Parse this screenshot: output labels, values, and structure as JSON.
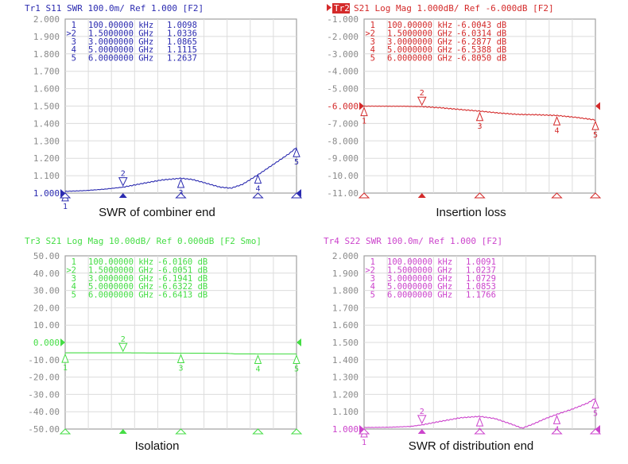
{
  "chart_data": [
    {
      "type": "line",
      "id": "tr1",
      "header": "Tr1 S11 SWR 100.0m/ Ref 1.000 [F2]",
      "trace_label": "Tr1",
      "trace_active": false,
      "caption": "SWR of combiner end",
      "color": "#2b2bb0",
      "ylim": [
        1.0,
        2.0
      ],
      "yticks": [
        "2.000",
        "1.900",
        "1.800",
        "1.700",
        "1.600",
        "1.500",
        "1.400",
        "1.300",
        "1.200",
        "1.100",
        "1.000"
      ],
      "ref_value": 1.0,
      "ref_tick_index": 10,
      "xlim_ghz": [
        0.0001,
        6
      ],
      "x_divisions": 10,
      "markers": [
        {
          "num": "1",
          "active": false,
          "freq": "100.00000 kHz",
          "value": "1.0098",
          "x_ghz": 0.0001,
          "y": 1.0098
        },
        {
          "num": "2",
          "active": true,
          "freq": "1.5000000 GHz",
          "value": "1.0336",
          "x_ghz": 1.5,
          "y": 1.0336
        },
        {
          "num": "3",
          "active": false,
          "freq": "3.0000000 GHz",
          "value": "1.0865",
          "x_ghz": 3.0,
          "y": 1.0865
        },
        {
          "num": "4",
          "active": false,
          "freq": "5.0000000 GHz",
          "value": "1.1115",
          "x_ghz": 5.0,
          "y": 1.1115
        },
        {
          "num": "5",
          "active": false,
          "freq": "6.0000000 GHz",
          "value": "1.2637",
          "x_ghz": 6.0,
          "y": 1.2637
        }
      ],
      "trace": [
        [
          0,
          1.01
        ],
        [
          0.5,
          1.014
        ],
        [
          1.0,
          1.022
        ],
        [
          1.5,
          1.034
        ],
        [
          2.0,
          1.055
        ],
        [
          2.5,
          1.075
        ],
        [
          3.0,
          1.085
        ],
        [
          3.3,
          1.078
        ],
        [
          3.6,
          1.06
        ],
        [
          4.0,
          1.035
        ],
        [
          4.3,
          1.028
        ],
        [
          4.6,
          1.05
        ],
        [
          5.0,
          1.105
        ],
        [
          5.3,
          1.15
        ],
        [
          5.6,
          1.195
        ],
        [
          5.8,
          1.225
        ],
        [
          6.0,
          1.262
        ]
      ]
    },
    {
      "type": "line",
      "id": "tr2",
      "header": "S21 Log Mag 1.000dB/ Ref -6.000dB [F2]",
      "trace_label": "Tr2",
      "trace_active": true,
      "caption": "Insertion loss",
      "color": "#d42a2a",
      "ylim": [
        -11.0,
        -1.0
      ],
      "yticks": [
        "-1.000",
        "-2.000",
        "-3.000",
        "-4.000",
        "-5.000",
        "-6.000",
        "-7.000",
        "-8.000",
        "-9.000",
        "-10.00",
        "-11.00"
      ],
      "ref_value": -6.0,
      "ref_tick_index": 5,
      "xlim_ghz": [
        0.0001,
        6
      ],
      "x_divisions": 10,
      "markers": [
        {
          "num": "1",
          "active": false,
          "freq": "100.00000 kHz",
          "value": "-6.0043 dB",
          "x_ghz": 0.0001,
          "y": -6.0043
        },
        {
          "num": "2",
          "active": true,
          "freq": "1.5000000 GHz",
          "value": "-6.0314 dB",
          "x_ghz": 1.5,
          "y": -6.0314
        },
        {
          "num": "3",
          "active": false,
          "freq": "3.0000000 GHz",
          "value": "-6.2877 dB",
          "x_ghz": 3.0,
          "y": -6.2877
        },
        {
          "num": "4",
          "active": false,
          "freq": "5.0000000 GHz",
          "value": "-6.5388 dB",
          "x_ghz": 5.0,
          "y": -6.5388
        },
        {
          "num": "5",
          "active": false,
          "freq": "6.0000000 GHz",
          "value": "-6.8050 dB",
          "x_ghz": 6.0,
          "y": -6.805
        }
      ],
      "trace": [
        [
          0,
          -6.004
        ],
        [
          1.0,
          -6.01
        ],
        [
          1.5,
          -6.03
        ],
        [
          2.0,
          -6.1
        ],
        [
          2.5,
          -6.2
        ],
        [
          3.0,
          -6.29
        ],
        [
          3.5,
          -6.4
        ],
        [
          4.0,
          -6.48
        ],
        [
          4.5,
          -6.5
        ],
        [
          5.0,
          -6.54
        ],
        [
          5.5,
          -6.65
        ],
        [
          6.0,
          -6.8
        ]
      ]
    },
    {
      "type": "line",
      "id": "tr3",
      "header": "Tr3 S21 Log Mag 10.00dB/ Ref 0.000dB [F2 Smo]",
      "trace_label": "Tr3",
      "trace_active": false,
      "caption": "Isolation",
      "color": "#44dd44",
      "ylim": [
        -50.0,
        50.0
      ],
      "yticks": [
        "50.00",
        "40.00",
        "30.00",
        "20.00",
        "10.00",
        "0.000",
        "-10.00",
        "-20.00",
        "-30.00",
        "-40.00",
        "-50.00"
      ],
      "ref_value": 0.0,
      "ref_tick_index": 5,
      "xlim_ghz": [
        0.0001,
        6
      ],
      "x_divisions": 10,
      "markers": [
        {
          "num": "1",
          "active": false,
          "freq": "100.00000 kHz",
          "value": "-6.0160 dB",
          "x_ghz": 0.0001,
          "y": -6.016
        },
        {
          "num": "2",
          "active": true,
          "freq": "1.5000000 GHz",
          "value": "-6.0051 dB",
          "x_ghz": 1.5,
          "y": -6.0051
        },
        {
          "num": "3",
          "active": false,
          "freq": "3.0000000 GHz",
          "value": "-6.1941 dB",
          "x_ghz": 3.0,
          "y": -6.1941
        },
        {
          "num": "4",
          "active": false,
          "freq": "5.0000000 GHz",
          "value": "-6.6322 dB",
          "x_ghz": 5.0,
          "y": -6.6322
        },
        {
          "num": "5",
          "active": false,
          "freq": "6.0000000 GHz",
          "value": "-6.6413 dB",
          "x_ghz": 6.0,
          "y": -6.6413
        }
      ],
      "trace": [
        [
          0,
          -6.016
        ],
        [
          1.5,
          -6.005
        ],
        [
          3.0,
          -6.194
        ],
        [
          4.2,
          -6.3
        ],
        [
          4.4,
          -6.6
        ],
        [
          5.0,
          -6.632
        ],
        [
          6.0,
          -6.641
        ]
      ]
    },
    {
      "type": "line",
      "id": "tr4",
      "header": "Tr4 S22 SWR 100.0m/ Ref 1.000 [F2]",
      "trace_label": "Tr4",
      "trace_active": false,
      "caption": "SWR of distribution end",
      "color": "#cc44cc",
      "ylim": [
        1.0,
        2.0
      ],
      "yticks": [
        "2.000",
        "1.900",
        "1.800",
        "1.700",
        "1.600",
        "1.500",
        "1.400",
        "1.300",
        "1.200",
        "1.100",
        "1.000"
      ],
      "ref_value": 1.0,
      "ref_tick_index": 10,
      "xlim_ghz": [
        0.0001,
        6
      ],
      "x_divisions": 10,
      "markers": [
        {
          "num": "1",
          "active": false,
          "freq": "100.00000 kHz",
          "value": "1.0091",
          "x_ghz": 0.0001,
          "y": 1.0091
        },
        {
          "num": "2",
          "active": true,
          "freq": "1.5000000 GHz",
          "value": "1.0237",
          "x_ghz": 1.5,
          "y": 1.0237
        },
        {
          "num": "3",
          "active": false,
          "freq": "3.0000000 GHz",
          "value": "1.0729",
          "x_ghz": 3.0,
          "y": 1.0729
        },
        {
          "num": "4",
          "active": false,
          "freq": "5.0000000 GHz",
          "value": "1.0853",
          "x_ghz": 5.0,
          "y": 1.0853
        },
        {
          "num": "5",
          "active": false,
          "freq": "6.0000000 GHz",
          "value": "1.1766",
          "x_ghz": 6.0,
          "y": 1.1766
        }
      ],
      "trace": [
        [
          0,
          1.009
        ],
        [
          0.6,
          1.01
        ],
        [
          1.2,
          1.015
        ],
        [
          1.5,
          1.024
        ],
        [
          2.0,
          1.045
        ],
        [
          2.5,
          1.065
        ],
        [
          3.0,
          1.073
        ],
        [
          3.4,
          1.06
        ],
        [
          3.8,
          1.03
        ],
        [
          4.1,
          1.005
        ],
        [
          4.4,
          1.03
        ],
        [
          4.7,
          1.06
        ],
        [
          5.0,
          1.085
        ],
        [
          5.4,
          1.115
        ],
        [
          5.8,
          1.15
        ],
        [
          6.0,
          1.177
        ]
      ]
    }
  ]
}
